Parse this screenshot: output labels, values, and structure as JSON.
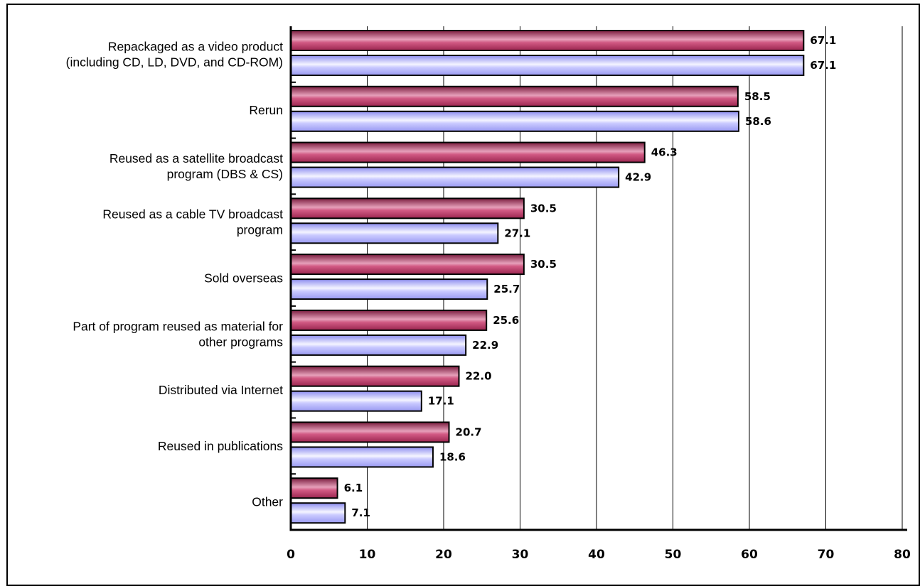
{
  "chart_data": {
    "type": "bar",
    "orientation": "horizontal",
    "categories": [
      "Repackaged as a video product\n(including CD, LD, DVD, and CD-ROM)",
      "Rerun",
      "Reused as a satellite broadcast\nprogram (DBS & CS)",
      "Reused as a cable TV broadcast\nprogram",
      "Sold overseas",
      "Part of program reused as material for\nother programs",
      "Distributed via Internet",
      "Reused in publications",
      "Other"
    ],
    "series": [
      {
        "color": "#c8406e",
        "values": [
          67.1,
          58.5,
          46.3,
          30.5,
          30.5,
          25.6,
          22.0,
          20.7,
          6.1
        ],
        "labels": [
          "67.1",
          "58.5",
          "46.3",
          "30.5",
          "30.5",
          "25.6",
          "22.0",
          "20.7",
          "6.1"
        ]
      },
      {
        "color": "#b4b4ff",
        "values": [
          67.1,
          58.6,
          42.9,
          27.1,
          25.7,
          22.9,
          17.1,
          18.6,
          7.1
        ],
        "labels": [
          "67.1",
          "58.6",
          "42.9",
          "27.1",
          "25.7",
          "22.9",
          "17.1",
          "18.6",
          "7.1"
        ]
      }
    ],
    "xlim": [
      0,
      80
    ],
    "xticks": [
      "0",
      "10",
      "20",
      "30",
      "40",
      "50",
      "60",
      "70",
      "80"
    ],
    "grid": true,
    "legend": "none"
  }
}
